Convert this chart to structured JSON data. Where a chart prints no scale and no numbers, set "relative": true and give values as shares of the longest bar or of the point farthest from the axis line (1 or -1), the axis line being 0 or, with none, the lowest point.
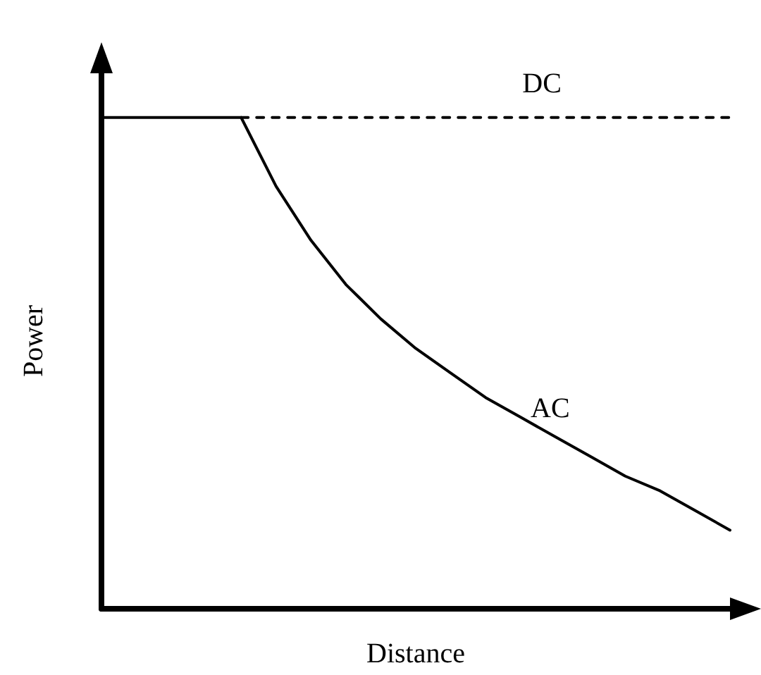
{
  "chart_data": {
    "type": "line",
    "relative": true,
    "xlabel": "Distance",
    "ylabel": "Power",
    "grid": false,
    "legend": false,
    "marker": "none",
    "categories": [
      null,
      null,
      null,
      null,
      null,
      null,
      null,
      null,
      null,
      null,
      null,
      null,
      null,
      null,
      null,
      null,
      null,
      null,
      null
    ],
    "series": [
      {
        "color": "#000000",
        "line_style": "solid",
        "values": [
          1,
          1,
          1,
          1,
          1,
          null,
          null,
          null,
          null,
          null,
          null,
          null,
          null,
          null,
          null,
          null,
          null,
          null,
          null
        ]
      },
      {
        "name": "DC",
        "color": "#000000",
        "line_style": "dashed",
        "values": [
          null,
          null,
          null,
          null,
          1,
          1,
          1,
          1,
          1,
          1,
          1,
          1,
          1,
          1,
          1,
          1,
          1,
          1,
          1
        ]
      },
      {
        "name": "AC",
        "color": "#000000",
        "line_style": "solid",
        "values": [
          null,
          null,
          null,
          null,
          1,
          0.86,
          0.75,
          0.66,
          0.59,
          0.53,
          0.48,
          0.43,
          0.39,
          0.35,
          0.31,
          0.27,
          0.24,
          0.2,
          0.16
        ]
      }
    ]
  }
}
